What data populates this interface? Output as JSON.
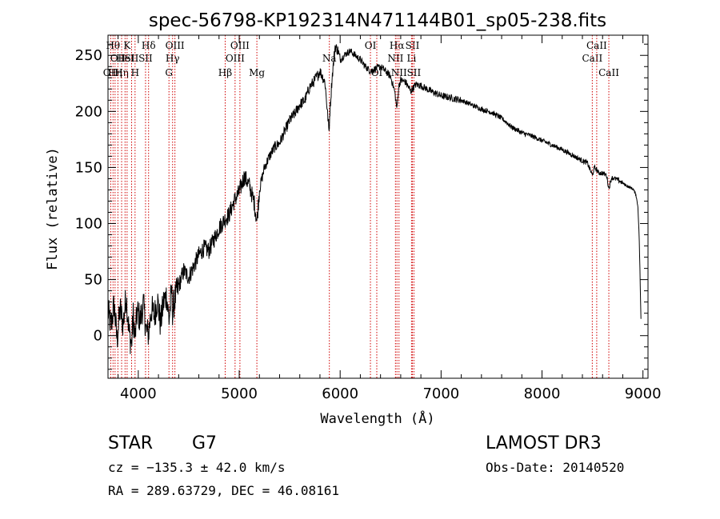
{
  "chart_data": {
    "type": "line",
    "title": "spec-56798-KP192314N471144B01_sp05-238.fits",
    "xlabel": "Wavelength (Å)",
    "ylabel": "Flux (relative)",
    "xlim": [
      3700,
      9050
    ],
    "ylim": [
      -38,
      268
    ],
    "x_ticks": [
      4000,
      5000,
      6000,
      7000,
      8000,
      9000
    ],
    "y_ticks": [
      0,
      50,
      100,
      150,
      200,
      250
    ],
    "series": [
      {
        "name": "flux",
        "x": [
          3700,
          3730,
          3760,
          3790,
          3820,
          3850,
          3880,
          3910,
          3933,
          3950,
          3968,
          3990,
          4020,
          4050,
          4080,
          4102,
          4130,
          4160,
          4190,
          4220,
          4250,
          4280,
          4305,
          4330,
          4340,
          4360,
          4400,
          4450,
          4500,
          4550,
          4600,
          4650,
          4700,
          4750,
          4800,
          4861,
          4900,
          4950,
          5000,
          5050,
          5100,
          5150,
          5175,
          5200,
          5250,
          5300,
          5350,
          5400,
          5450,
          5500,
          5550,
          5600,
          5650,
          5700,
          5750,
          5800,
          5850,
          5870,
          5890,
          5896,
          5920,
          5950,
          5980,
          6000,
          6050,
          6100,
          6150,
          6200,
          6250,
          6300,
          6350,
          6400,
          6450,
          6500,
          6540,
          6563,
          6580,
          6600,
          6650,
          6700,
          6750,
          6800,
          6900,
          7000,
          7100,
          7200,
          7300,
          7400,
          7500,
          7600,
          7700,
          7800,
          7900,
          8000,
          8100,
          8200,
          8300,
          8400,
          8450,
          8498,
          8520,
          8542,
          8560,
          8600,
          8640,
          8662,
          8690,
          8750,
          8800,
          8850,
          8900,
          8930,
          8950,
          8960,
          8970,
          8980
        ],
        "values": [
          22,
          8,
          28,
          -4,
          24,
          10,
          36,
          2,
          -8,
          18,
          -2,
          22,
          14,
          28,
          4,
          2,
          24,
          18,
          32,
          10,
          30,
          36,
          14,
          40,
          22,
          32,
          44,
          58,
          52,
          62,
          72,
          78,
          76,
          86,
          96,
          104,
          108,
          120,
          128,
          142,
          134,
          118,
          102,
          130,
          150,
          160,
          168,
          172,
          182,
          192,
          198,
          206,
          210,
          222,
          228,
          236,
          226,
          204,
          182,
          196,
          230,
          258,
          254,
          246,
          251,
          254,
          250,
          246,
          240,
          236,
          238,
          240,
          236,
          231,
          218,
          202,
          222,
          228,
          226,
          218,
          224,
          223,
          218,
          214,
          212,
          210,
          206,
          202,
          199,
          194,
          186,
          181,
          178,
          174,
          170,
          166,
          161,
          156,
          154,
          143,
          150,
          148,
          145,
          145,
          143,
          131,
          141,
          139,
          136,
          133,
          131,
          126,
          115,
          95,
          60,
          15
        ]
      }
    ],
    "line_markers": [
      {
        "wl": 3727,
        "label": "OII",
        "row": 3
      },
      {
        "wl": 3750,
        "label": "Hθ",
        "row": 1
      },
      {
        "wl": 3770,
        "label": "Hη",
        "row": 3
      },
      {
        "wl": 3798,
        "label": "OII",
        "row": 2
      },
      {
        "wl": 3835,
        "label": "Hη",
        "row": 3
      },
      {
        "wl": 3869,
        "label": "HeI",
        "row": 2
      },
      {
        "wl": 3889,
        "label": "K",
        "row": 1
      },
      {
        "wl": 3934,
        "label": "SII",
        "row": 2
      },
      {
        "wl": 3968,
        "label": "H",
        "row": 3
      },
      {
        "wl": 4102,
        "label": "Hδ",
        "row": 1
      },
      {
        "wl": 4072,
        "label": "SII",
        "row": 2
      },
      {
        "wl": 4304,
        "label": "G",
        "row": 3
      },
      {
        "wl": 4340,
        "label": "Hγ",
        "row": 2
      },
      {
        "wl": 4363,
        "label": "OIII",
        "row": 1
      },
      {
        "wl": 4861,
        "label": "Hβ",
        "row": 3
      },
      {
        "wl": 4959,
        "label": "OIII",
        "row": 2
      },
      {
        "wl": 5007,
        "label": "OIII",
        "row": 1
      },
      {
        "wl": 5175,
        "label": "Mg",
        "row": 3
      },
      {
        "wl": 5893,
        "label": "Na",
        "row": 2
      },
      {
        "wl": 6300,
        "label": "OI",
        "row": 1
      },
      {
        "wl": 6363,
        "label": "OI",
        "row": 3
      },
      {
        "wl": 6548,
        "label": "NII",
        "row": 2
      },
      {
        "wl": 6563,
        "label": "Hα",
        "row": 1
      },
      {
        "wl": 6583,
        "label": "NII",
        "row": 3
      },
      {
        "wl": 6707,
        "label": "Li",
        "row": 2
      },
      {
        "wl": 6716,
        "label": "SII",
        "row": 1
      },
      {
        "wl": 6731,
        "label": "SII",
        "row": 3
      },
      {
        "wl": 8498,
        "label": "CaII",
        "row": 2
      },
      {
        "wl": 8542,
        "label": "CaII",
        "row": 1
      },
      {
        "wl": 8662,
        "label": "CaII",
        "row": 3
      }
    ]
  },
  "info": {
    "object_class": "STAR",
    "subclass": "G7",
    "survey": "LAMOST DR3",
    "cz": "cz = −135.3 ± 42.0 km/s",
    "obs_date": "Obs-Date: 20140520",
    "coords": "RA = 289.63729, DEC =  46.08161"
  }
}
